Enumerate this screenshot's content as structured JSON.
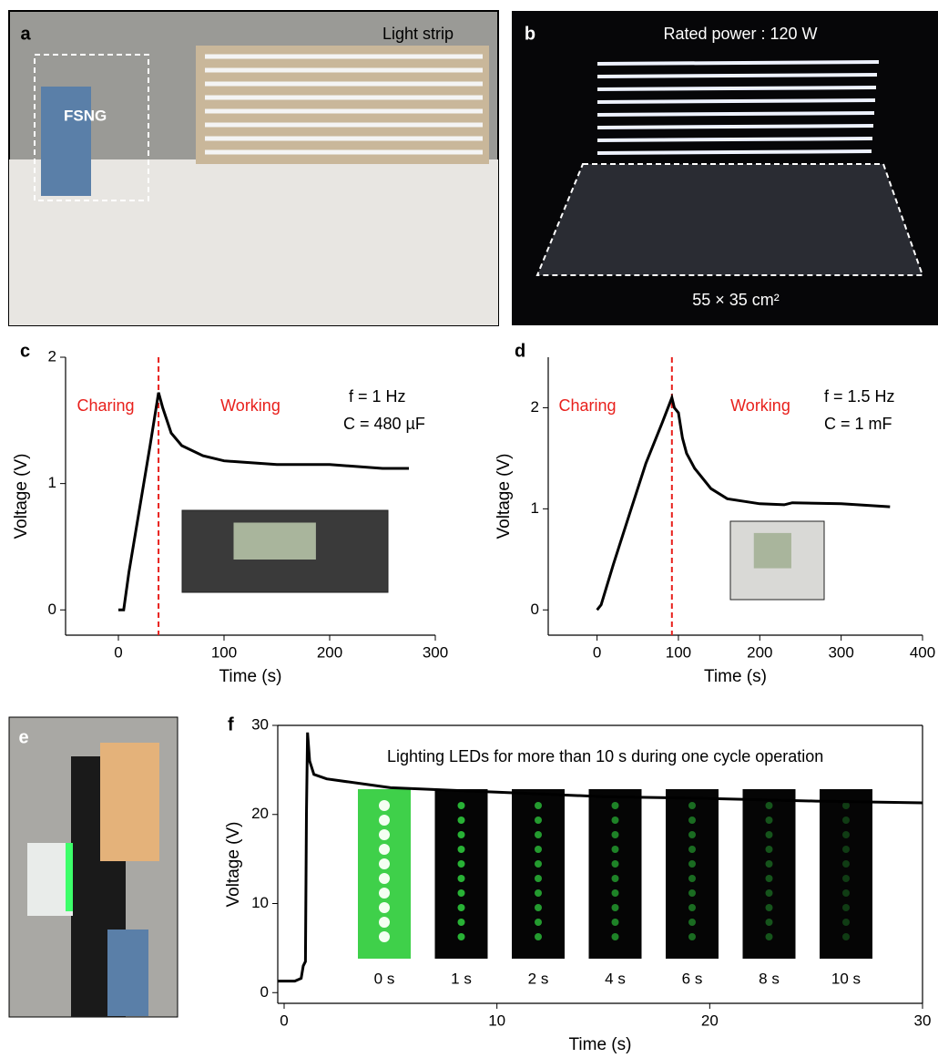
{
  "photo_panels": [
    {
      "label": "a",
      "texts": [
        "Light strip",
        "FSNG"
      ]
    },
    {
      "label": "b",
      "texts": [
        "Rated power : 120 W",
        "55 × 35 cm²"
      ]
    },
    {
      "label": "e",
      "texts": []
    }
  ],
  "chart_data": [
    {
      "type": "line",
      "label": "c",
      "xlabel": "Time (s)",
      "ylabel": "Voltage (V)",
      "xlim": [
        -50,
        300
      ],
      "xticks": [
        0,
        100,
        200,
        300
      ],
      "ylim": [
        -0.2,
        2
      ],
      "yticks": [
        0,
        1,
        2
      ],
      "box": false,
      "marker_x": 38,
      "marker_color": "#e8201c",
      "annotations": [
        "Charing",
        "Working",
        "f = 1 Hz",
        "C = 480 µF"
      ],
      "series": [
        {
          "color": "#000000",
          "x": [
            0,
            5,
            10,
            20,
            30,
            38,
            42,
            50,
            60,
            80,
            100,
            150,
            200,
            250,
            275
          ],
          "values": [
            0,
            0,
            0.3,
            0.8,
            1.3,
            1.72,
            1.6,
            1.4,
            1.3,
            1.22,
            1.18,
            1.15,
            1.15,
            1.12,
            1.12
          ]
        }
      ]
    },
    {
      "type": "line",
      "label": "d",
      "xlabel": "Time (s)",
      "ylabel": "Voltage (V)",
      "xlim": [
        -60,
        400
      ],
      "xticks": [
        0,
        100,
        200,
        300,
        400
      ],
      "ylim": [
        -0.25,
        2.5
      ],
      "yticks": [
        0,
        1,
        2
      ],
      "box": false,
      "marker_x": 92,
      "marker_color": "#e8201c",
      "annotations": [
        "Charing",
        "Working",
        "f = 1.5 Hz",
        "C = 1 mF"
      ],
      "series": [
        {
          "color": "#000000",
          "x": [
            0,
            5,
            20,
            40,
            60,
            80,
            92,
            95,
            100,
            105,
            110,
            120,
            140,
            160,
            200,
            230,
            240,
            300,
            360
          ],
          "values": [
            0,
            0.05,
            0.45,
            0.95,
            1.45,
            1.85,
            2.1,
            2.0,
            1.95,
            1.7,
            1.55,
            1.4,
            1.2,
            1.1,
            1.05,
            1.04,
            1.06,
            1.05,
            1.02
          ]
        }
      ]
    },
    {
      "type": "line",
      "label": "f",
      "xlabel": "Time (s)",
      "ylabel": "Voltage (V)",
      "xlim": [
        -0.3,
        30
      ],
      "xticks": [
        0,
        10,
        20,
        30
      ],
      "ylim": [
        -1.2,
        30
      ],
      "yticks": [
        0,
        10,
        20,
        30
      ],
      "box": true,
      "annotations": [
        "Lighting LEDs for more than 10 s during one cycle operation"
      ],
      "inset_labels": [
        "0 s",
        "1 s",
        "2 s",
        "4 s",
        "6 s",
        "8 s",
        "10 s"
      ],
      "series": [
        {
          "color": "#000000",
          "x": [
            -0.3,
            0.5,
            0.8,
            0.9,
            1.0,
            1.05,
            1.1,
            1.2,
            1.4,
            2,
            5,
            10,
            15,
            20,
            25,
            30
          ],
          "values": [
            1.3,
            1.3,
            1.6,
            3,
            3.5,
            20,
            29.2,
            26,
            24.5,
            24,
            23,
            22.5,
            22,
            21.8,
            21.5,
            21.3
          ]
        }
      ]
    }
  ]
}
